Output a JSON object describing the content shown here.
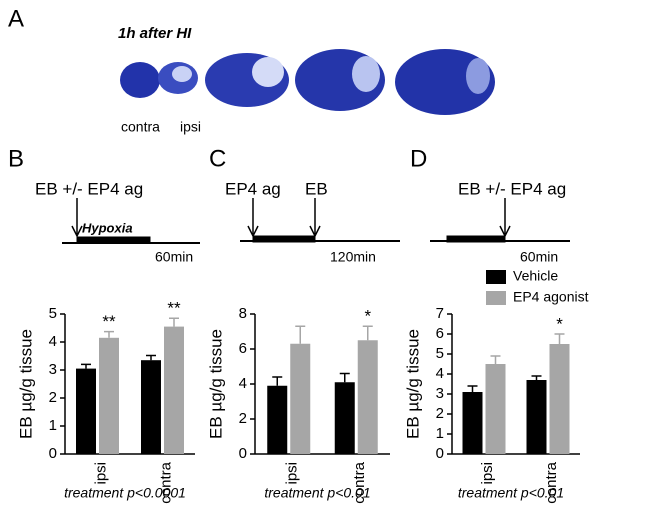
{
  "panels": [
    "A",
    "B",
    "C",
    "D"
  ],
  "panel_a": {
    "title": "1h after HI",
    "labels": [
      "contra",
      "ipsi"
    ]
  },
  "timelines": [
    {
      "labels": [
        "EB +/- EP4 ag"
      ],
      "phase": "Hypoxia",
      "duration": "60min"
    },
    {
      "labels": [
        "EP4 ag",
        "EB"
      ],
      "duration": "120min"
    },
    {
      "labels": [
        "EB +/- EP4 ag"
      ],
      "duration": "60min"
    }
  ],
  "chart_data": [
    {
      "type": "bar",
      "ylabel": "EB µg/g tissue",
      "categories": [
        "ipsi",
        "contra"
      ],
      "ylim": [
        0,
        5
      ],
      "yticks": [
        0,
        1,
        2,
        3,
        4,
        5
      ],
      "footnote": "treatment p<0.0001",
      "series": [
        {
          "color": "#000000",
          "values": [
            3.05,
            3.35
          ],
          "errors": [
            0.15,
            0.17
          ]
        },
        {
          "color": "#a6a6a6",
          "values": [
            4.15,
            4.55
          ],
          "errors": [
            0.22,
            0.3
          ],
          "stars": [
            "**",
            "**"
          ]
        }
      ]
    },
    {
      "type": "bar",
      "ylabel": "EB µg/g tissue",
      "categories": [
        "ipsi",
        "contra"
      ],
      "ylim": [
        0,
        8
      ],
      "yticks": [
        0,
        2,
        4,
        6,
        8
      ],
      "footnote": "treatment p<0.01",
      "series": [
        {
          "color": "#000000",
          "values": [
            3.9,
            4.1
          ],
          "errors": [
            0.5,
            0.5
          ]
        },
        {
          "color": "#a6a6a6",
          "values": [
            6.3,
            6.5
          ],
          "errors": [
            1.0,
            0.8
          ],
          "stars": [
            null,
            "*"
          ]
        }
      ]
    },
    {
      "type": "bar",
      "ylabel": "EB µg/g tissue",
      "categories": [
        "ipsi",
        "contra"
      ],
      "ylim": [
        0,
        7
      ],
      "yticks": [
        0,
        1,
        2,
        3,
        4,
        5,
        6,
        7
      ],
      "footnote": "treatment p<0.01",
      "series": [
        {
          "name": "Vehicle",
          "color": "#000000",
          "values": [
            3.1,
            3.7
          ],
          "errors": [
            0.3,
            0.2
          ]
        },
        {
          "name": "EP4 agonist",
          "color": "#a6a6a6",
          "values": [
            4.5,
            5.5
          ],
          "errors": [
            0.4,
            0.5
          ],
          "stars": [
            null,
            "*"
          ]
        }
      ]
    }
  ]
}
